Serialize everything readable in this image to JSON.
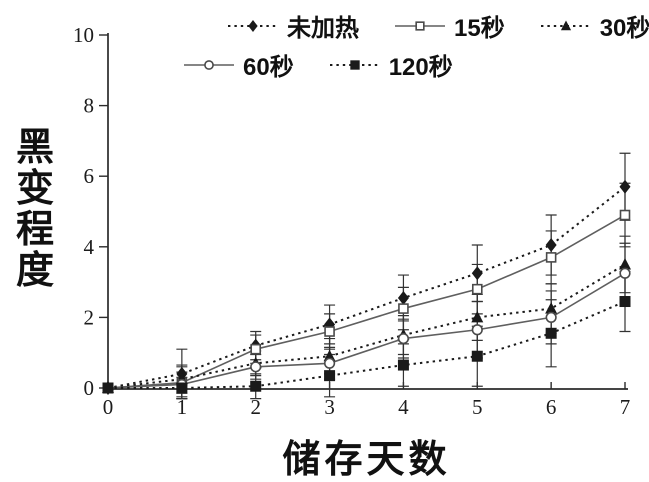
{
  "colors": {
    "background": "#ffffff",
    "axis": "#2b2b2b",
    "dotted_series": "#1a1a1a",
    "solid_series": "#5f5f5f",
    "error_bar": "#333333",
    "open_marker_stroke": "#4a4a4a",
    "open_marker_fill": "#ffffff"
  },
  "chart_data": {
    "type": "line",
    "title": "",
    "xlabel": "储存天数",
    "ylabel": "黑变程度",
    "ylabel_chars": [
      "黑",
      "变",
      "程",
      "度"
    ],
    "x": [
      0,
      1,
      2,
      3,
      4,
      5,
      6,
      7
    ],
    "x_ticks": [
      "0",
      "1",
      "2",
      "3",
      "4",
      "5",
      "6",
      "7"
    ],
    "y_ticks": [
      "0",
      "2",
      "4",
      "6",
      "8",
      "10"
    ],
    "xlim": [
      0,
      7
    ],
    "ylim": [
      0,
      10
    ],
    "grid": false,
    "legend_position": "top-center",
    "error_bars": true,
    "series": [
      {
        "id": "unheated",
        "name": "未加热",
        "marker": "diamond-filled",
        "line_style": "dotted",
        "values": [
          0,
          0.4,
          1.2,
          1.8,
          2.55,
          3.25,
          4.05,
          5.7
        ],
        "errors": [
          0,
          0.7,
          0.4,
          0.55,
          0.65,
          0.8,
          0.85,
          0.95
        ]
      },
      {
        "id": "15s",
        "name": "15秒",
        "marker": "square-open",
        "line_style": "solid",
        "values": [
          0,
          0.15,
          1.1,
          1.6,
          2.25,
          2.8,
          3.7,
          4.9
        ],
        "errors": [
          0,
          0.45,
          0.4,
          0.5,
          0.6,
          0.7,
          0.75,
          0.9
        ]
      },
      {
        "id": "30s",
        "name": "30秒",
        "marker": "triangle-filled",
        "line_style": "dotted",
        "values": [
          0,
          0.25,
          0.7,
          0.9,
          1.5,
          2.0,
          2.25,
          3.5
        ],
        "errors": [
          0,
          0.4,
          0.35,
          0.5,
          0.55,
          0.65,
          0.7,
          0.8
        ]
      },
      {
        "id": "60s",
        "name": "60秒",
        "marker": "circle-open",
        "line_style": "solid",
        "values": [
          0,
          0.1,
          0.6,
          0.7,
          1.4,
          1.65,
          2.0,
          3.25
        ],
        "errors": [
          0,
          0.35,
          0.35,
          0.45,
          0.55,
          0.8,
          0.75,
          0.85
        ]
      },
      {
        "id": "120s",
        "name": "120秒",
        "marker": "square-filled",
        "line_style": "dotted",
        "values": [
          0,
          0,
          0.05,
          0.35,
          0.65,
          0.9,
          1.55,
          2.45
        ],
        "errors": [
          0,
          0.3,
          0.35,
          0.6,
          0.6,
          0.85,
          0.95,
          0.85
        ]
      }
    ]
  }
}
